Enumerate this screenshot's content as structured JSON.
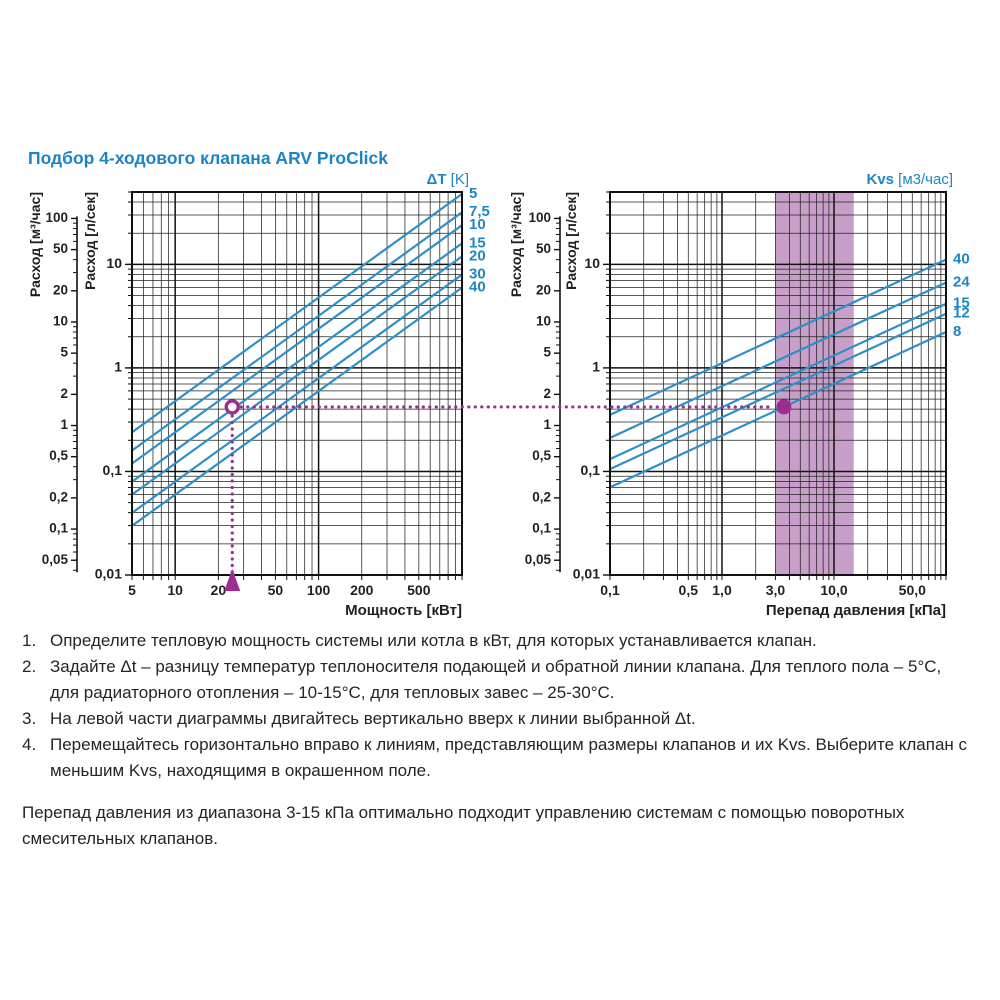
{
  "page": {
    "title": "Подбор 4-ходового клапана ARV ProClick"
  },
  "colors": {
    "accent_blue": "#1b84c6",
    "line_blue": "#2e8fc8",
    "label_blue": "#1f86c4",
    "magenta": "#9c2e92",
    "band_fill": "#c89fc9",
    "grid": "#222222",
    "frame": "#111111",
    "text": "#282425"
  },
  "chart_data": [
    {
      "id": "power-flow-chart",
      "type": "line",
      "x_scale": "log",
      "x_range": [
        5,
        1000
      ],
      "y_scale": "log",
      "y_range": [
        0.01,
        50
      ],
      "grid": "log-log minor gridlines on",
      "xlabel": "Мощность [кВт]",
      "ylabel_outer": "Расход [м³/час]",
      "ylabel_inner": "Расход [л/сек]",
      "x_ticks": [
        {
          "v": 5,
          "label": "5"
        },
        {
          "v": 10,
          "label": "10"
        },
        {
          "v": 20,
          "label": "20"
        },
        {
          "v": 50,
          "label": "50"
        },
        {
          "v": 100,
          "label": "100"
        },
        {
          "v": 200,
          "label": "200"
        },
        {
          "v": 500,
          "label": "500"
        }
      ],
      "y_ticks": [
        {
          "v": 10,
          "label": "10"
        },
        {
          "v": 1,
          "label": "1"
        },
        {
          "v": 0.1,
          "label": "0,1"
        },
        {
          "v": 0.01,
          "label": "0,01"
        }
      ],
      "outer_scale_factor_from_lsec": 3.6,
      "outer_scale_ticks": [
        {
          "v": 100,
          "label": "100"
        },
        {
          "v": 50,
          "label": "50"
        },
        {
          "v": 20,
          "label": "20"
        },
        {
          "v": 10,
          "label": "10"
        },
        {
          "v": 5,
          "label": "5"
        },
        {
          "v": 2,
          "label": "2"
        },
        {
          "v": 1,
          "label": "1"
        },
        {
          "v": 0.5,
          "label": "0,5"
        },
        {
          "v": 0.2,
          "label": "0,2"
        },
        {
          "v": 0.1,
          "label": "0,1"
        },
        {
          "v": 0.05,
          "label": "0,05"
        }
      ],
      "legend_position": "right",
      "series_group_label": {
        "bold": "ΔT",
        "light": " [K]"
      },
      "series": [
        {
          "name": "dT=5",
          "label": "5",
          "points": [
            [
              5,
              0.23889
            ],
            [
              1000,
              47.778
            ]
          ]
        },
        {
          "name": "dT=7.5",
          "label": "7,5",
          "points": [
            [
              5,
              0.15926
            ],
            [
              1000,
              31.852
            ]
          ]
        },
        {
          "name": "dT=10",
          "label": "10",
          "points": [
            [
              5,
              0.11944
            ],
            [
              1000,
              23.889
            ]
          ]
        },
        {
          "name": "dT=15",
          "label": "15",
          "points": [
            [
              5,
              0.07963
            ],
            [
              1000,
              15.926
            ]
          ]
        },
        {
          "name": "dT=20",
          "label": "20",
          "points": [
            [
              5,
              0.05972
            ],
            [
              1000,
              11.944
            ]
          ]
        },
        {
          "name": "dT=30",
          "label": "30",
          "points": [
            [
              5,
              0.03981
            ],
            [
              1000,
              7.963
            ]
          ]
        },
        {
          "name": "dT=40",
          "label": "40",
          "points": [
            [
              5,
              0.02986
            ],
            [
              1000,
              5.972
            ]
          ]
        }
      ]
    },
    {
      "id": "pressure-flow-chart",
      "type": "line",
      "x_scale": "log",
      "x_range": [
        0.1,
        100
      ],
      "y_scale": "log",
      "y_range": [
        0.01,
        50
      ],
      "grid": "log-log minor gridlines on",
      "xlabel": "Перепад давления [кПа]",
      "ylabel_outer": "Расход [м³/час]",
      "ylabel_inner": "Расход [л/сек]",
      "x_ticks": [
        {
          "v": 0.1,
          "label": "0,1"
        },
        {
          "v": 0.5,
          "label": "0,5"
        },
        {
          "v": 1,
          "label": "1,0"
        },
        {
          "v": 3,
          "label": "3,0"
        },
        {
          "v": 10,
          "label": "10,0"
        },
        {
          "v": 50,
          "label": "50,0"
        }
      ],
      "y_ticks": [
        {
          "v": 10,
          "label": "10"
        },
        {
          "v": 1,
          "label": "1"
        },
        {
          "v": 0.1,
          "label": "0,1"
        },
        {
          "v": 0.01,
          "label": "0,01"
        }
      ],
      "outer_scale_factor_from_lsec": 3.6,
      "outer_scale_ticks": [
        {
          "v": 100,
          "label": "100"
        },
        {
          "v": 50,
          "label": "50"
        },
        {
          "v": 20,
          "label": "20"
        },
        {
          "v": 10,
          "label": "10"
        },
        {
          "v": 5,
          "label": "5"
        },
        {
          "v": 2,
          "label": "2"
        },
        {
          "v": 1,
          "label": "1"
        },
        {
          "v": 0.5,
          "label": "0,5"
        },
        {
          "v": 0.2,
          "label": "0,2"
        },
        {
          "v": 0.1,
          "label": "0,1"
        },
        {
          "v": 0.05,
          "label": "0,05"
        }
      ],
      "legend_position": "right",
      "series_group_label": {
        "bold": "Kvs",
        "light": " [м3/час]"
      },
      "series": [
        {
          "name": "Kvs=40",
          "label": "40",
          "points": [
            [
              0.1,
              0.35136
            ],
            [
              100,
              11.111
            ]
          ]
        },
        {
          "name": "Kvs=24",
          "label": "24",
          "points": [
            [
              0.1,
              0.21082
            ],
            [
              100,
              6.6667
            ]
          ]
        },
        {
          "name": "Kvs=15",
          "label": "15",
          "points": [
            [
              0.1,
              0.13176
            ],
            [
              100,
              4.1667
            ]
          ]
        },
        {
          "name": "Kvs=12",
          "label": "12",
          "points": [
            [
              0.1,
              0.10541
            ],
            [
              100,
              3.3333
            ]
          ]
        },
        {
          "name": "Kvs=8",
          "label": "8",
          "points": [
            [
              0.1,
              0.070273
            ],
            [
              100,
              2.2222
            ]
          ]
        }
      ],
      "shaded_band_kpa": [
        3,
        15
      ]
    }
  ],
  "example_path": {
    "power_kw": 25,
    "flow_lsec": 0.42,
    "pressure_kpa": 3.57
  },
  "instructions": {
    "items": [
      {
        "num": "1.",
        "text": "Определите тепловую мощность системы или котла в кВт, для которых устанавливается клапан."
      },
      {
        "num": "2.",
        "text": "Задайте Δt – разницу температур теплоносителя подающей и обратной линии клапана. Для теплого пола – 5°C, для радиаторного отопления – 10-15°C, для тепловых завес – 25-30°C."
      },
      {
        "num": "3.",
        "text": "На левой части диаграммы двигайтесь вертикально вверх к линии выбранной Δt."
      },
      {
        "num": "4.",
        "text": "Перемещайтесь горизонтально вправо к линиям, представляющим размеры клапанов и их Kvs. Выберите клапан с меньшим Kvs, находящимя в окрашенном поле."
      }
    ]
  },
  "note": "Перепад давления из диапазона 3-15 кПа оптимально подходит управлению системам с помощью поворотных смесительных клапанов."
}
